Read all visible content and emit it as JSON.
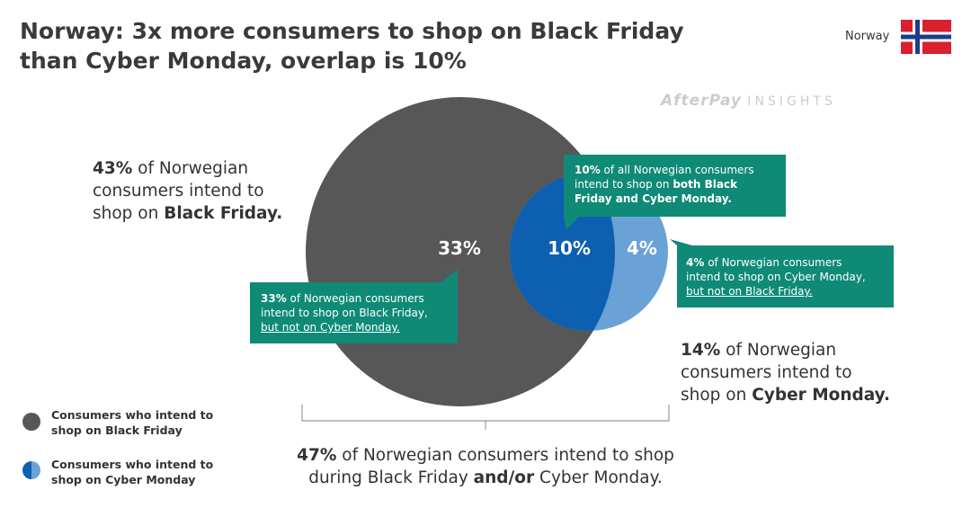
{
  "header": {
    "title_lines": [
      "Norway: 3x more consumers to shop on Black Friday",
      "than Cyber Monday, overlap is 10%"
    ],
    "country": "Norway",
    "watermark_brand": "AfterPay",
    "watermark_tag": "INSIGHTS"
  },
  "venn": {
    "black_friday_only": "33%",
    "both": "10%",
    "cyber_monday_only": "4%"
  },
  "annotations": {
    "black_friday": {
      "lines": [
        [
          {
            "text": "43%",
            "bold": true
          },
          {
            "text": " of Norwegian"
          }
        ],
        [
          {
            "text": "consumers intend to"
          }
        ],
        [
          {
            "text": "shop on "
          },
          {
            "text": "Black Friday.",
            "bold": true
          }
        ]
      ]
    },
    "cyber_monday": {
      "lines": [
        [
          {
            "text": "14%",
            "bold": true
          },
          {
            "text": " of Norwegian"
          }
        ],
        [
          {
            "text": "consumers intend to"
          }
        ],
        [
          {
            "text": "shop on "
          },
          {
            "text": "Cyber Monday.",
            "bold": true
          }
        ]
      ]
    },
    "total": {
      "lines": [
        [
          {
            "text": "47%",
            "bold": true
          },
          {
            "text": " of Norwegian consumers intend to shop"
          }
        ],
        [
          {
            "text": "during Black Friday "
          },
          {
            "text": "and/or",
            "bold": true
          },
          {
            "text": " Cyber Monday."
          }
        ]
      ]
    },
    "callout_both": {
      "lines": [
        [
          {
            "text": "10%",
            "bold": true
          },
          {
            "text": " of all Norwegian consumers"
          }
        ],
        [
          {
            "text": "intend to shop on "
          },
          {
            "text": "both Black",
            "bold": true
          }
        ],
        [
          {
            "text": "Friday and Cyber Monday.",
            "bold": true
          }
        ]
      ]
    },
    "callout_cyber_only": {
      "lines": [
        [
          {
            "text": "4%",
            "bold": true
          },
          {
            "text": " of Norwegian consumers"
          }
        ],
        [
          {
            "text": "intend to shop on Cyber Monday,"
          }
        ],
        [
          {
            "text": "but not on Black Friday.",
            "underline": true
          }
        ]
      ]
    },
    "callout_black_only": {
      "lines": [
        [
          {
            "text": "33%",
            "bold": true
          },
          {
            "text": " of Norwegian consumers"
          }
        ],
        [
          {
            "text": "intend to shop on Black Friday,"
          }
        ],
        [
          {
            "text": "but not on Cyber Monday.",
            "underline": true
          }
        ]
      ]
    }
  },
  "legend": [
    {
      "lines": [
        [
          {
            "text": "Consumers who intend to"
          }
        ],
        [
          {
            "text": "shop on Black Friday"
          }
        ]
      ]
    },
    {
      "lines": [
        [
          {
            "text": "Consumers who intend to"
          }
        ],
        [
          {
            "text": "shop on Cyber Monday"
          }
        ]
      ]
    }
  ]
}
